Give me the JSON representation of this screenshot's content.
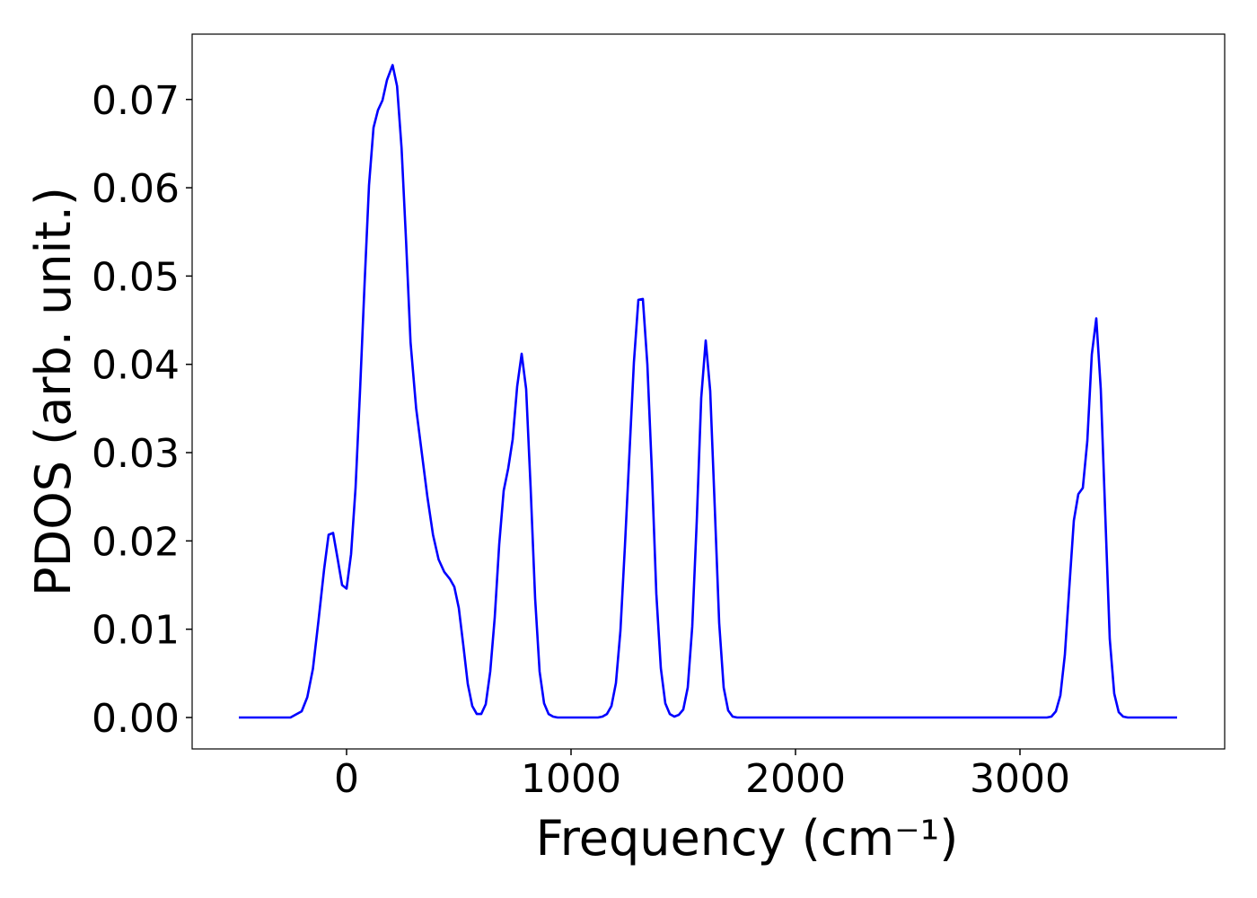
{
  "chart_data": {
    "type": "line",
    "xlabel": "Frequency (cm⁻¹)",
    "ylabel": "PDOS (arb. unit.)",
    "xlim": [
      -688,
      3912
    ],
    "ylim": [
      -0.00356,
      0.0774
    ],
    "xticks": [
      0,
      1000,
      2000,
      3000
    ],
    "yticks": [
      {
        "value": 0,
        "label": "0.00"
      },
      {
        "value": 0.01,
        "label": "0.01"
      },
      {
        "value": 0.02,
        "label": "0.02"
      },
      {
        "value": 0.03,
        "label": "0.03"
      },
      {
        "value": 0.04,
        "label": "0.04"
      },
      {
        "value": 0.05,
        "label": "0.05"
      },
      {
        "value": 0.06,
        "label": "0.06"
      },
      {
        "value": 0.07,
        "label": "0.07"
      }
    ],
    "grid": false,
    "series": [
      {
        "color": "#0000ff",
        "x": [
          -480,
          -250,
          -200,
          -175,
          -150,
          -125,
          -100,
          -80,
          -60,
          -40,
          -20,
          0,
          20,
          40,
          60,
          80,
          100,
          120,
          140,
          160,
          180,
          205,
          225,
          245,
          265,
          285,
          310,
          335,
          360,
          385,
          410,
          435,
          460,
          480,
          500,
          520,
          540,
          560,
          580,
          600,
          620,
          640,
          660,
          680,
          700,
          720,
          740,
          760,
          780,
          800,
          820,
          840,
          860,
          880,
          900,
          920,
          940,
          1120,
          1140,
          1160,
          1180,
          1200,
          1220,
          1240,
          1260,
          1280,
          1300,
          1320,
          1340,
          1360,
          1380,
          1400,
          1420,
          1440,
          1460,
          1480,
          1500,
          1520,
          1540,
          1560,
          1580,
          1600,
          1620,
          1640,
          1660,
          1680,
          1700,
          1720,
          1740,
          3120,
          3140,
          3160,
          3180,
          3200,
          3220,
          3240,
          3260,
          3280,
          3300,
          3320,
          3340,
          3360,
          3380,
          3400,
          3420,
          3440,
          3460,
          3480,
          3700
        ],
        "values": [
          0,
          0,
          0.0007,
          0.0023,
          0.0055,
          0.011,
          0.0168,
          0.0207,
          0.0209,
          0.018,
          0.015,
          0.0146,
          0.0185,
          0.026,
          0.037,
          0.049,
          0.0603,
          0.0668,
          0.0688,
          0.0699,
          0.0722,
          0.0739,
          0.0715,
          0.0645,
          0.054,
          0.0425,
          0.035,
          0.03,
          0.025,
          0.0207,
          0.0179,
          0.0165,
          0.0157,
          0.0148,
          0.0124,
          0.0082,
          0.0038,
          0.0013,
          0.0004,
          0.0004,
          0.0015,
          0.0052,
          0.0113,
          0.0196,
          0.0257,
          0.0282,
          0.0315,
          0.0375,
          0.0412,
          0.0372,
          0.026,
          0.0135,
          0.0052,
          0.0016,
          0.0004,
          0.0001,
          0,
          0,
          0.0001,
          0.0004,
          0.0013,
          0.0039,
          0.0098,
          0.0194,
          0.0298,
          0.0402,
          0.0473,
          0.0474,
          0.04,
          0.028,
          0.014,
          0.0056,
          0.0016,
          0.0004,
          0.0001,
          0.0003,
          0.0009,
          0.0034,
          0.0103,
          0.0222,
          0.0362,
          0.0427,
          0.037,
          0.024,
          0.0107,
          0.0034,
          0.0008,
          0.0001,
          0,
          0,
          0.0001,
          0.0007,
          0.0025,
          0.0071,
          0.0148,
          0.0223,
          0.0253,
          0.026,
          0.0313,
          0.0411,
          0.0452,
          0.0372,
          0.023,
          0.0089,
          0.0027,
          0.0006,
          0.0001,
          0,
          0
        ]
      }
    ]
  }
}
